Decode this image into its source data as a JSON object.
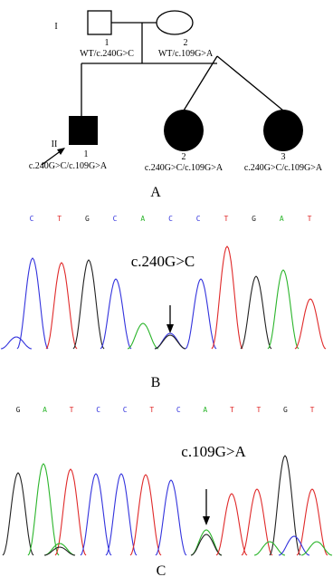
{
  "pedigree": {
    "generations": [
      "I",
      "II"
    ],
    "individuals": [
      {
        "number": "1",
        "genotype": "WT/c.240G>C"
      },
      {
        "number": "2",
        "genotype": "WT/c.109G>A"
      },
      {
        "number": "1",
        "genotype": "c.240G>C/c.109G>A"
      },
      {
        "number": "2",
        "genotype": "c.240G>C/c.109G>A"
      },
      {
        "number": "3",
        "genotype": "c.240G>C/c.109G>A"
      }
    ],
    "panel_label": "A"
  },
  "base_colors": {
    "A": "#2bb52b",
    "C": "#3333dd",
    "G": "#222222",
    "T": "#e02a2a"
  },
  "chromatograms": [
    {
      "bases": [
        "C",
        "T",
        "G",
        "C",
        "A",
        "C",
        "C",
        "T",
        "G",
        "A",
        "T"
      ],
      "mutation": "c.240G>C",
      "panel_label": "B"
    },
    {
      "bases": [
        "G",
        "A",
        "T",
        "C",
        "C",
        "T",
        "C",
        "A",
        "T",
        "T",
        "G",
        "T"
      ],
      "mutation": "c.109G>A",
      "panel_label": "C"
    }
  ]
}
